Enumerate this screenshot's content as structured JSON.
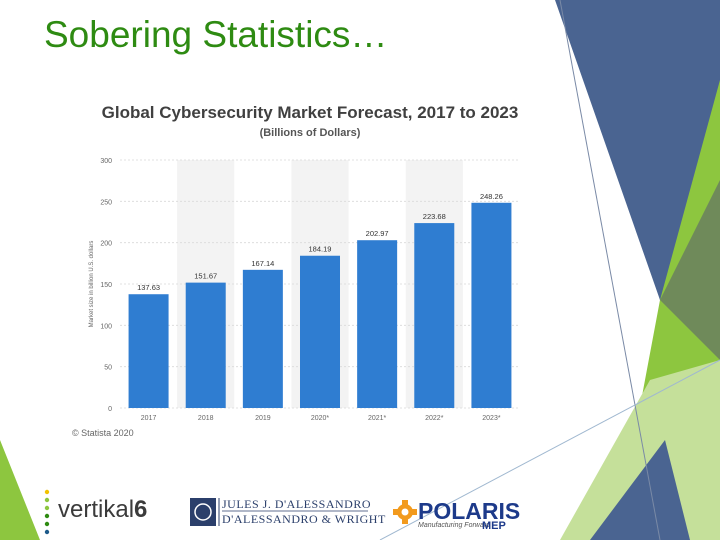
{
  "slide": {
    "title": "Sobering Statistics…"
  },
  "chart_data": {
    "type": "bar",
    "title": "Global Cybersecurity Market Forecast, 2017 to 2023",
    "subtitle": "(Billions of Dollars)",
    "ylabel": "Market size in billion U.S. dollars",
    "xlabel": "",
    "categories": [
      "2017",
      "2018",
      "2019",
      "2020*",
      "2021*",
      "2022*",
      "2023*"
    ],
    "values": [
      137.63,
      151.67,
      167.14,
      184.19,
      202.97,
      223.68,
      248.26
    ],
    "value_labels": [
      "137.63",
      "151.67",
      "167.14",
      "184.19",
      "202.97",
      "223.68",
      "248.26"
    ],
    "ylim": [
      0,
      300
    ],
    "yticks": [
      0,
      50,
      100,
      150,
      200,
      250,
      300
    ],
    "grid": true,
    "source": "© Statista 2020",
    "bar_color": "#2f7dd1"
  },
  "logos": {
    "vertikal_text": "vertikal",
    "vertikal_number": "6",
    "dalessandro_line1": "JULES J. D'ALESSANDRO",
    "dalessandro_line2": "D'ALESSANDRO & WRIGHT",
    "polaris_text": "POLARIS",
    "polaris_tagline": "Manufacturing Forward",
    "polaris_mep": "MEP"
  },
  "colors": {
    "title_green": "#2e8b12",
    "decor_green": "#8dc63f",
    "decor_light_green": "#c5e09a",
    "decor_blue": "#4a6491"
  }
}
